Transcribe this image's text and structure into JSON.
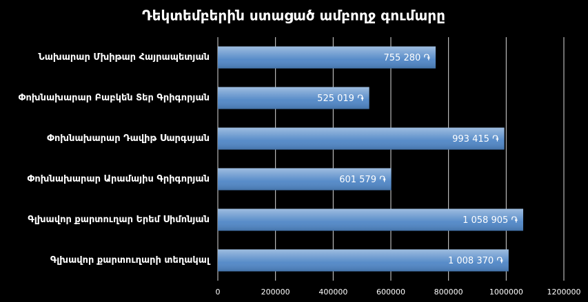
{
  "chart_data": {
    "type": "bar",
    "orientation": "horizontal",
    "title": "Դեկտեմբերին ստացած ամբողջ գումարը",
    "categories": [
      "Նախարար Մխիթար Հայրապետյան",
      "Փոխնախարար Բաբկեն Տեր Գրիգորյան",
      "Փոխնախարար Դավիթ Սարգսյան",
      "Փոխնախարար Արամայիս Գրիգորյան",
      "Գլխավոր քարտուղար Երեմ Սիմոնյան",
      "Գլխավոր քարտուղարի տեղակալ"
    ],
    "values": [
      755280,
      525019,
      993415,
      601579,
      1058905,
      1008370
    ],
    "value_labels": [
      "755 280 ֏",
      "525 019 ֏",
      "993 415 ֏",
      "601 579 ֏",
      "1 058 905 ֏",
      "1 008 370 ֏"
    ],
    "color": "#4f86c6",
    "xlim": [
      0,
      1200000
    ],
    "xticks": [
      0,
      200000,
      400000,
      600000,
      800000,
      1000000,
      1200000
    ],
    "grid": true
  }
}
